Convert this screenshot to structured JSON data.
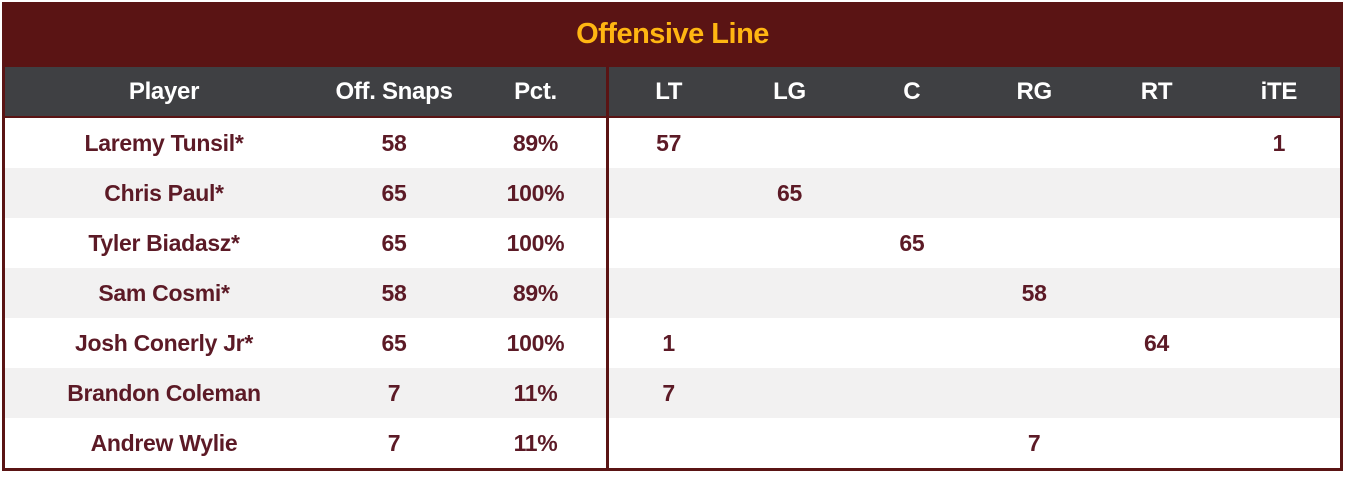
{
  "chart_data": {
    "type": "table",
    "title": "Offensive Line",
    "columns": [
      "Player",
      "Off. Snaps",
      "Pct.",
      "LT",
      "LG",
      "C",
      "RG",
      "RT",
      "iTE"
    ],
    "rows": [
      [
        "Laremy Tunsil*",
        "58",
        "89%",
        "57",
        "",
        "",
        "",
        "",
        "1"
      ],
      [
        "Chris Paul*",
        "65",
        "100%",
        "",
        "65",
        "",
        "",
        "",
        ""
      ],
      [
        "Tyler Biadasz*",
        "65",
        "100%",
        "",
        "",
        "65",
        "",
        "",
        ""
      ],
      [
        "Sam Cosmi*",
        "58",
        "89%",
        "",
        "",
        "",
        "58",
        "",
        ""
      ],
      [
        "Josh Conerly Jr*",
        "65",
        "100%",
        "1",
        "",
        "",
        "",
        "64",
        ""
      ],
      [
        "Brandon Coleman",
        "7",
        "11%",
        "7",
        "",
        "",
        "",
        "",
        ""
      ],
      [
        "Andrew Wylie",
        "7",
        "11%",
        "",
        "",
        "",
        "7",
        "",
        ""
      ]
    ],
    "layout": {
      "divider_after_column": "Pct.",
      "striped_rows": true,
      "all_cells_centered": true
    },
    "colors": {
      "title_bar_bg": "#5A1414",
      "title_text": "#FFB612",
      "header_bg": "#3F4043",
      "header_text": "#FFFFFF",
      "row_alt_bg": "#F2F1F1",
      "cell_text": "#5C1A26",
      "border": "#5A1414"
    }
  }
}
